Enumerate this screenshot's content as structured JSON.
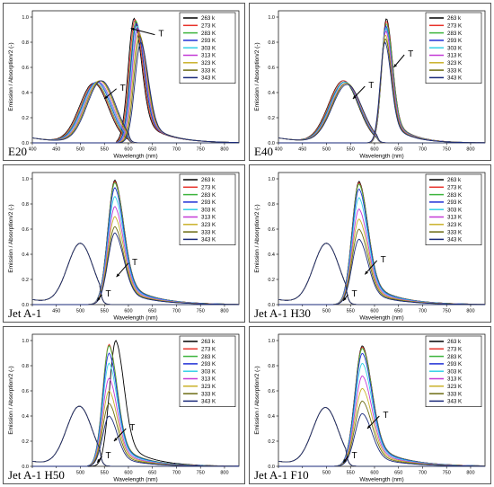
{
  "figure": {
    "panel_labels": [
      "E20",
      "E40",
      "Jet A-1",
      "Jet A-1 H30",
      "Jet A-1 H50",
      "Jet A-1 F10"
    ],
    "legend_title": "",
    "legend_entries": [
      [
        "263 k",
        "273 K",
        "283 K",
        "293 K",
        "303 K",
        "313 K",
        "323 K",
        "333 K",
        "343 K"
      ],
      [
        "263 k",
        "273 K",
        "283 K",
        "293 K",
        "303 K",
        "313 K",
        "323 K",
        "333 K",
        "343 K"
      ],
      [
        "263 k",
        "273 K",
        "283 K",
        "293 K",
        "303 K",
        "313 K",
        "323 K",
        "333 K",
        "343 K"
      ],
      [
        "263 k",
        "273 K",
        "283 K",
        "293 K",
        "303 K",
        "313 K",
        "323 K",
        "333 K",
        "343 K"
      ],
      [
        "263 k",
        "273 K",
        "283 K",
        "293 K",
        "303 K",
        "313 K",
        "323 K",
        "333 K",
        "343 K"
      ],
      [
        "263 k",
        "273 K",
        "283 K",
        "293 K",
        "303 K",
        "313 K",
        "323 K",
        "333 K",
        "343 K"
      ]
    ],
    "series_colors": [
      "#000000",
      "#e8322a",
      "#3cb43c",
      "#1f2fd6",
      "#33d0e6",
      "#c43ad6",
      "#c9b12a",
      "#6b6b12",
      "#1a2a7a"
    ],
    "arrow_label": "T"
  },
  "chart_data": [
    {
      "type": "line",
      "panel": "E20",
      "xlabel": "Wavelength (nm)",
      "ylabel": "Emission / Absorption/2 (-)",
      "xlim": [
        400,
        830
      ],
      "ylim": [
        0,
        1.05
      ],
      "xticks": [
        "400",
        "450",
        "500",
        "550",
        "600",
        "650",
        "700",
        "750",
        "800"
      ],
      "yticks": [
        "0.0",
        "0.2",
        "0.4",
        "0.6",
        "0.8",
        "1.0"
      ],
      "absorption": {
        "peak_x": [
          528,
          530,
          532,
          534,
          536,
          538,
          540,
          542,
          544
        ],
        "peak_y": [
          0.47,
          0.47,
          0.47,
          0.48,
          0.48,
          0.48,
          0.49,
          0.49,
          0.49
        ],
        "width": 42,
        "cutoff": 600
      },
      "emission": {
        "peak_x": [
          612,
          614,
          616,
          617,
          619,
          620,
          622,
          624,
          626
        ],
        "peak_y": [
          0.99,
          0.98,
          0.97,
          0.95,
          0.93,
          0.91,
          0.88,
          0.85,
          0.8
        ],
        "width": 22,
        "shoulder": 0.12
      },
      "arrows": [
        {
          "from": [
            655,
            0.86
          ],
          "to": [
            605,
            0.91
          ]
        },
        {
          "from": [
            575,
            0.43
          ],
          "to": [
            550,
            0.35
          ]
        }
      ]
    },
    {
      "type": "line",
      "panel": "E40",
      "xlabel": "Wavelength (nm)",
      "ylabel": "Emission / Absorption/2 (-)",
      "xlim": [
        400,
        830
      ],
      "ylim": [
        0,
        1.05
      ],
      "xticks": [
        "400",
        "450",
        "500",
        "550",
        "600",
        "650",
        "700",
        "750",
        "800"
      ],
      "yticks": [
        "0.0",
        "0.2",
        "0.4",
        "0.6",
        "0.8",
        "1.0"
      ],
      "absorption": {
        "peak_x": [
          535,
          536,
          537,
          538,
          539,
          540,
          541,
          542,
          543
        ],
        "peak_y": [
          0.49,
          0.49,
          0.48,
          0.48,
          0.48,
          0.47,
          0.47,
          0.47,
          0.46
        ],
        "width": 44,
        "cutoff": 605
      },
      "emission": {
        "peak_x": [
          625,
          625,
          625,
          624,
          624,
          624,
          623,
          623,
          622
        ],
        "peak_y": [
          0.99,
          0.97,
          0.95,
          0.93,
          0.91,
          0.89,
          0.86,
          0.83,
          0.8
        ],
        "width": 18,
        "shoulder": 0.14
      },
      "arrows": [
        {
          "from": [
            662,
            0.7
          ],
          "to": [
            640,
            0.6
          ]
        },
        {
          "from": [
            580,
            0.45
          ],
          "to": [
            555,
            0.35
          ]
        }
      ]
    },
    {
      "type": "line",
      "panel": "Jet A-1",
      "xlabel": "Wavelength (nm)",
      "ylabel": "Emission / Absorption/2 (-)",
      "xlim": [
        400,
        830
      ],
      "ylim": [
        0,
        1.05
      ],
      "xticks": [
        "400",
        "450",
        "500",
        "550",
        "600",
        "650",
        "700",
        "750",
        "800"
      ],
      "yticks": [
        "0.0",
        "0.2",
        "0.4",
        "0.6",
        "0.8",
        "1.0"
      ],
      "absorption": {
        "peak_x": [
          500,
          500,
          500,
          500,
          500,
          500,
          500,
          500,
          500
        ],
        "peak_y": [
          0.48,
          0.48,
          0.48,
          0.48,
          0.48,
          0.48,
          0.48,
          0.48,
          0.48
        ],
        "width": 38,
        "cutoff": 540
      },
      "emission": {
        "peak_x": [
          572,
          572,
          572,
          572,
          572,
          572,
          572,
          572,
          572
        ],
        "peak_y": [
          0.99,
          0.98,
          0.97,
          0.93,
          0.86,
          0.78,
          0.7,
          0.62,
          0.57
        ],
        "width": 26,
        "shoulder": 0.05
      },
      "arrows": [
        {
          "from": [
            600,
            0.33
          ],
          "to": [
            575,
            0.22
          ]
        },
        {
          "from": [
            545,
            0.08
          ],
          "to": [
            535,
            0.03
          ]
        }
      ]
    },
    {
      "type": "line",
      "panel": "Jet A-1 H30",
      "xlabel": "Wavelength (nm)",
      "ylabel": "Emission / Absorption/2 (-)",
      "xlim": [
        400,
        830
      ],
      "ylim": [
        0,
        1.05
      ],
      "xticks": [
        "400",
        "450",
        "500",
        "550",
        "600",
        "650",
        "700",
        "750",
        "800"
      ],
      "yticks": [
        "0.0",
        "0.2",
        "0.4",
        "0.6",
        "0.8",
        "1.0"
      ],
      "absorption": {
        "peak_x": [
          500,
          500,
          500,
          500,
          500,
          500,
          500,
          500,
          500
        ],
        "peak_y": [
          0.48,
          0.48,
          0.48,
          0.48,
          0.48,
          0.48,
          0.48,
          0.48,
          0.48
        ],
        "width": 38,
        "cutoff": 540
      },
      "emission": {
        "peak_x": [
          568,
          568,
          568,
          568,
          568,
          568,
          568,
          568,
          568
        ],
        "peak_y": [
          0.98,
          0.97,
          0.96,
          0.92,
          0.85,
          0.76,
          0.68,
          0.6,
          0.52
        ],
        "width": 26,
        "shoulder": 0.05
      },
      "arrows": [
        {
          "from": [
            605,
            0.35
          ],
          "to": [
            580,
            0.24
          ]
        },
        {
          "from": [
            545,
            0.08
          ],
          "to": [
            535,
            0.03
          ]
        }
      ]
    },
    {
      "type": "line",
      "panel": "Jet A-1 H50",
      "xlabel": "Wavelength (nm)",
      "ylabel": "Emission / Absorption/2 (-)",
      "xlim": [
        400,
        830
      ],
      "ylim": [
        0,
        1.05
      ],
      "xticks": [
        "400",
        "450",
        "500",
        "550",
        "600",
        "650",
        "700",
        "750",
        "800"
      ],
      "yticks": [
        "0.0",
        "0.2",
        "0.4",
        "0.6",
        "0.8",
        "1.0"
      ],
      "absorption": {
        "peak_x": [
          498,
          498,
          498,
          498,
          498,
          498,
          498,
          498,
          498
        ],
        "peak_y": [
          0.47,
          0.47,
          0.47,
          0.47,
          0.47,
          0.47,
          0.47,
          0.47,
          0.47
        ],
        "width": 38,
        "cutoff": 540
      },
      "emission": {
        "peak_x": [
          574,
          560,
          560,
          560,
          560,
          560,
          560,
          560,
          560
        ],
        "peak_y": [
          1.0,
          0.97,
          0.96,
          0.9,
          0.82,
          0.7,
          0.6,
          0.5,
          0.4
        ],
        "width": 24,
        "shoulder": 0.05
      },
      "arrows": [
        {
          "from": [
            595,
            0.3
          ],
          "to": [
            570,
            0.2
          ]
        },
        {
          "from": [
            545,
            0.08
          ],
          "to": [
            535,
            0.03
          ]
        }
      ]
    },
    {
      "type": "line",
      "panel": "Jet A-1 F10",
      "xlabel": "Wavelength (nm)",
      "ylabel": "Emission / Absorption/2 (-)",
      "xlim": [
        400,
        830
      ],
      "ylim": [
        0,
        1.05
      ],
      "xticks": [
        "400",
        "450",
        "500",
        "550",
        "600",
        "650",
        "700",
        "750",
        "800"
      ],
      "yticks": [
        "0.0",
        "0.2",
        "0.4",
        "0.6",
        "0.8",
        "1.0"
      ],
      "absorption": {
        "peak_x": [
          498,
          498,
          498,
          498,
          498,
          498,
          498,
          498,
          498
        ],
        "peak_y": [
          0.46,
          0.46,
          0.46,
          0.46,
          0.46,
          0.46,
          0.46,
          0.46,
          0.46
        ],
        "width": 38,
        "cutoff": 540
      },
      "emission": {
        "peak_x": [
          575,
          575,
          575,
          575,
          575,
          575,
          575,
          575,
          575
        ],
        "peak_y": [
          0.96,
          0.95,
          0.94,
          0.9,
          0.82,
          0.72,
          0.62,
          0.52,
          0.42
        ],
        "width": 28,
        "shoulder": 0.05
      },
      "arrows": [
        {
          "from": [
            610,
            0.4
          ],
          "to": [
            585,
            0.3
          ]
        },
        {
          "from": [
            545,
            0.08
          ],
          "to": [
            535,
            0.03
          ]
        }
      ]
    }
  ]
}
